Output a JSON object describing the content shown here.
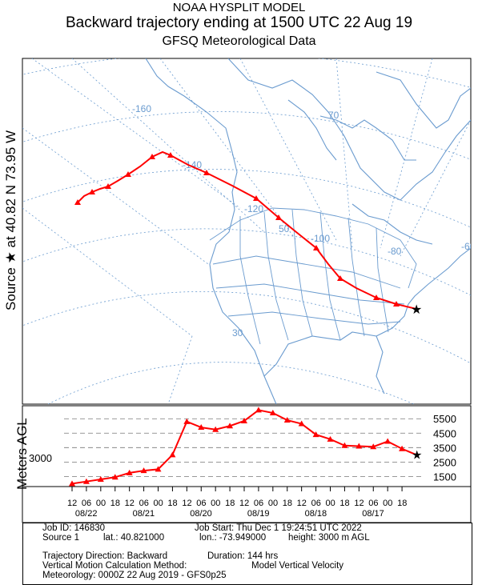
{
  "header": {
    "line1": "NOAA HYSPLIT MODEL",
    "line2": "Backward trajectory ending at 1500 UTC 22 Aug 19",
    "line3": "GFSQ Meteorological Data"
  },
  "side": {
    "source_label": "Source ★  at  40.82 N  73.95 W",
    "yaxis_label": "Meters AGL"
  },
  "map": {
    "graticule_labels": [
      "-160",
      "-140",
      "-120",
      "-100",
      "-80",
      "-60",
      "70",
      "50",
      "30"
    ],
    "trajectory_color": "#ff0000",
    "map_line_color": "#6a9bcf"
  },
  "chart_data": {
    "type": "line",
    "title": "",
    "ylabel": "Meters AGL",
    "source_height_label": "3000",
    "y_tick_labels": [
      "1500",
      "2500",
      "3500",
      "4500",
      "5500"
    ],
    "y_ticks": [
      1500,
      2500,
      3500,
      4500,
      5500
    ],
    "ylim": [
      800,
      6400
    ],
    "x_hour_labels": [
      "12",
      "06",
      "00",
      "18",
      "12",
      "06",
      "00",
      "18",
      "12",
      "06",
      "00",
      "18",
      "12",
      "06",
      "00",
      "18",
      "12",
      "06",
      "00",
      "18",
      "12",
      "06",
      "00",
      "18"
    ],
    "x_date_labels": [
      "08/22",
      "08/21",
      "08/20",
      "08/19",
      "08/18",
      "08/17"
    ],
    "series": [
      {
        "color": "#ff0000",
        "hours_back": [
          0,
          6,
          12,
          18,
          24,
          30,
          36,
          42,
          48,
          54,
          60,
          66,
          72,
          78,
          84,
          90,
          96,
          102,
          108,
          114,
          120,
          126,
          132,
          138,
          144
        ],
        "values": [
          3000,
          3420,
          3930,
          3560,
          3600,
          3640,
          4080,
          4400,
          5150,
          5400,
          5900,
          6100,
          5350,
          5000,
          4750,
          4900,
          5300,
          3000,
          2000,
          1900,
          1750,
          1450,
          1300,
          1150,
          1000
        ]
      }
    ]
  },
  "info": {
    "job_id": "Job ID: 146830",
    "job_start": "Job Start: Thu Dec  1 19:24:51 UTC 2022",
    "source": "Source 1",
    "lat": "lat.: 40.821000",
    "lon": "lon.: -73.949000",
    "height": "height: 3000 m AGL",
    "direction": "Trajectory Direction: Backward",
    "duration": "Duration: 144 hrs",
    "vmethod": "Vertical Motion Calculation Method:",
    "vmethod_value": "Model Vertical Velocity",
    "meteorology": "Meteorology: 0000Z 22 Aug 2019 - GFS0p25"
  }
}
